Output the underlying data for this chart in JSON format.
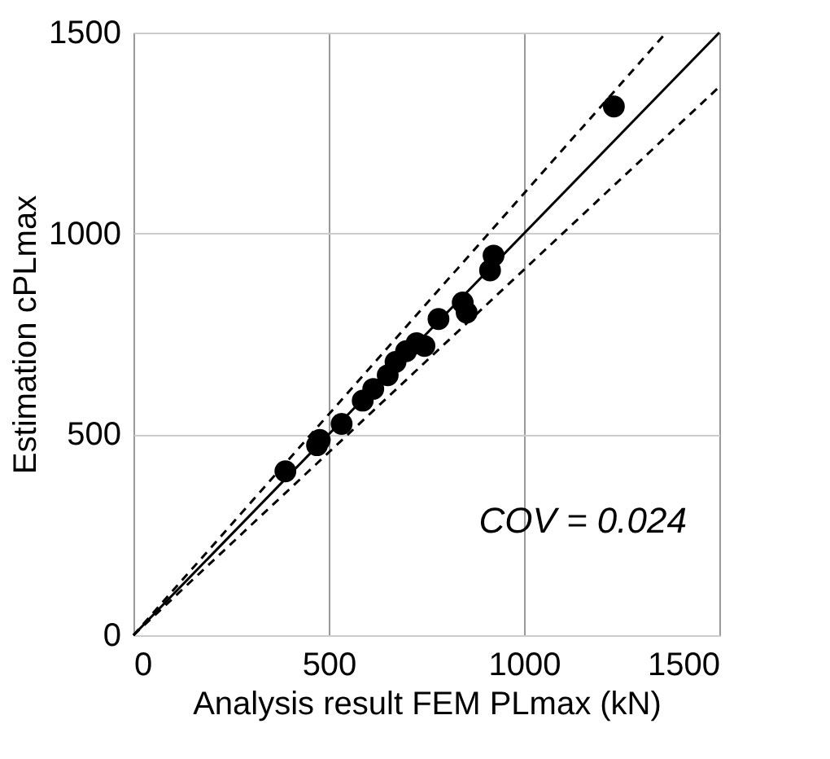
{
  "chart_data": {
    "type": "scatter",
    "xlabel": "Analysis result FEM PLmax (kN)",
    "ylabel": "Estimation cPLmax",
    "xlim": [
      0,
      1500
    ],
    "ylim": [
      0,
      1500
    ],
    "xticks": [
      0,
      500,
      1000,
      1500
    ],
    "yticks": [
      0,
      500,
      1000,
      1500
    ],
    "grid": true,
    "annotations": [
      "COV = 0.024"
    ],
    "series": [
      {
        "color": "#000000",
        "marker": "circle",
        "x": [
          1230,
          922,
          913,
          843,
          853,
          781,
          745,
          725,
          698,
          671,
          651,
          614,
          587,
          533,
          477,
          470,
          389
        ],
        "values": [
          1316,
          945,
          908,
          828,
          803,
          787,
          720,
          727,
          707,
          680,
          647,
          613,
          584,
          526,
          486,
          473,
          408
        ]
      },
      {
        "type": "line",
        "color": "#000000",
        "line_style": "solid",
        "x": [
          0,
          1500
        ],
        "values": [
          0,
          1500
        ]
      },
      {
        "type": "line",
        "color": "#000000",
        "line_style": "dashed",
        "x": [
          0,
          1364
        ],
        "values": [
          0,
          1500
        ]
      },
      {
        "type": "line",
        "color": "#000000",
        "line_style": "dashed",
        "x": [
          0,
          1500
        ],
        "values": [
          0,
          1365
        ]
      }
    ]
  }
}
